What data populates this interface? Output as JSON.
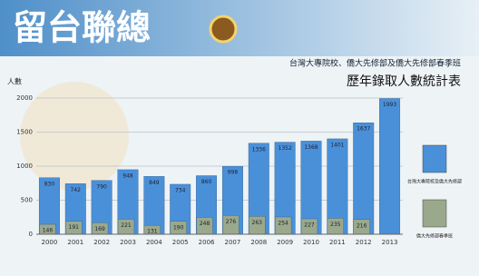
{
  "chart_data": {
    "type": "bar",
    "banner": "留台聯總",
    "subtitle": "台灣大專院校、僑大先修部及僑大先修部春季班",
    "title": "歷年錄取人數統計表",
    "y_label": "人數",
    "categories": [
      "2000",
      "2001",
      "2002",
      "2003",
      "2004",
      "2005",
      "2006",
      "2007",
      "2008",
      "2009",
      "2010",
      "2011",
      "2012",
      "2013"
    ],
    "series": [
      {
        "name": "台灣大專院校及僑大先修部",
        "color": "#4a90d9",
        "values": [
          830,
          742,
          790,
          948,
          849,
          734,
          860,
          998,
          1336,
          1352,
          1368,
          1401,
          1637,
          1993
        ]
      },
      {
        "name": "僑大先修部春季班",
        "color": "#9aa88c",
        "values": [
          146,
          191,
          169,
          221,
          131,
          190,
          248,
          276,
          263,
          254,
          227,
          235,
          216,
          null
        ]
      }
    ],
    "ylim": [
      0,
      2000
    ],
    "yticks": [
      0,
      500,
      1000,
      1500,
      2000
    ],
    "grid": true
  }
}
